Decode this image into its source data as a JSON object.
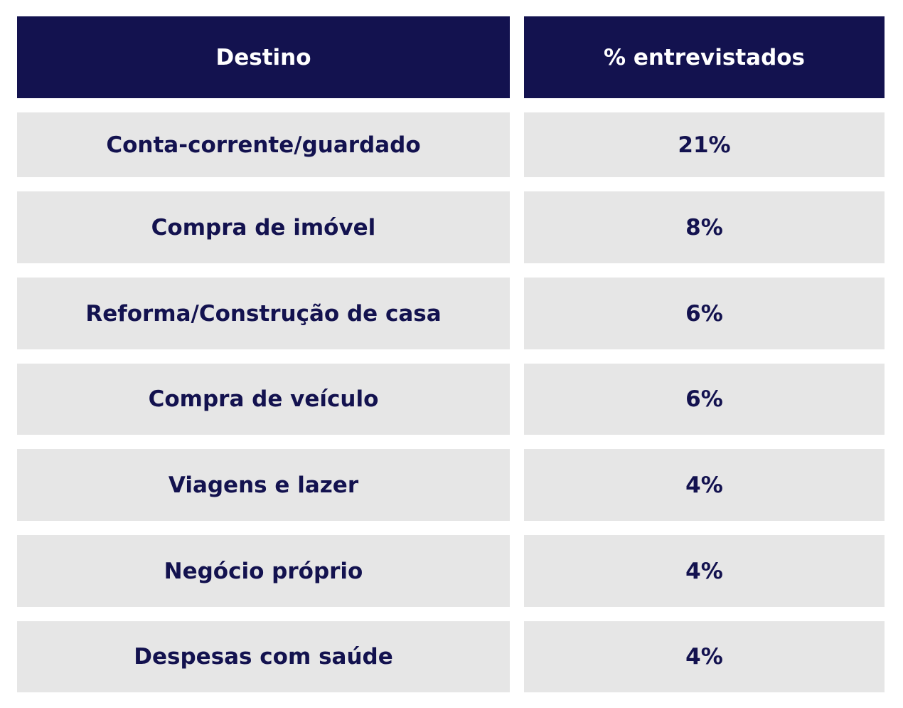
{
  "chart_data": {
    "type": "table",
    "columns": [
      "Destino",
      "% entrevistados"
    ],
    "rows": [
      {
        "destino": "Conta-corrente/guardado",
        "percent": "21%",
        "value": 21
      },
      {
        "destino": "Compra de imóvel",
        "percent": "8%",
        "value": 8
      },
      {
        "destino": "Reforma/Construção de casa",
        "percent": "6%",
        "value": 6
      },
      {
        "destino": "Compra de veículo",
        "percent": "6%",
        "value": 6
      },
      {
        "destino": "Viagens e lazer",
        "percent": "4%",
        "value": 4
      },
      {
        "destino": "Negócio próprio",
        "percent": "4%",
        "value": 4
      },
      {
        "destino": "Despesas com saúde",
        "percent": "4%",
        "value": 4
      }
    ],
    "colors": {
      "header_bg": "#13124f",
      "header_text": "#ffffff",
      "row_bg": "#e6e6e6",
      "row_text": "#13124f"
    }
  }
}
